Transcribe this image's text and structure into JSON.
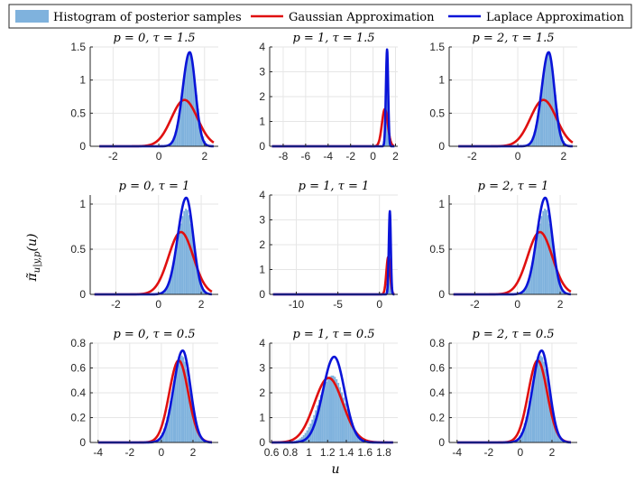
{
  "colors": {
    "hist": "#7fb2dd",
    "gauss": "#e01010",
    "laplace": "#0a14d8",
    "grid": "#e6e6e6",
    "axis": "#262626"
  },
  "legend": [
    {
      "label": "Histogram of posterior samples",
      "kind": "hist"
    },
    {
      "label": "Gaussian Approximation",
      "kind": "gauss"
    },
    {
      "label": "Laplace Approximation",
      "kind": "laplace"
    }
  ],
  "xlabel": "u",
  "ylabel": "π̃u|y,p(u)",
  "ylabel_parts": {
    "pi": "π̃",
    "sub": "u|y,p",
    "arg": "(u)"
  },
  "chart_data": [
    {
      "type": "line",
      "title": "p = 0, τ = 1.5",
      "xlim": [
        -3,
        2.6
      ],
      "ylim": [
        0,
        1.5
      ],
      "xticks": [
        -2,
        0,
        2
      ],
      "yticks": [
        0,
        0.5,
        1,
        1.5
      ],
      "ytick_labels": [
        "0",
        "0.5",
        "1",
        "1.5"
      ],
      "xtick_labels": [
        "-2",
        "0",
        "2"
      ],
      "gauss": {
        "mu": 1.12,
        "sigma": 0.57,
        "peak": 0.7
      },
      "laplace": {
        "mu": 1.35,
        "sigma": 0.28,
        "peak": 1.42,
        "skew": 0.1
      },
      "hist": {
        "mu": 1.35,
        "sigma": 0.3,
        "peak": 1.4,
        "skew": 0.08
      },
      "plot_x": [
        -2.6,
        2.4
      ]
    },
    {
      "type": "line",
      "title": "p = 1, τ = 1.5",
      "xlim": [
        -9.2,
        2.2
      ],
      "ylim": [
        0,
        4
      ],
      "xticks": [
        -8,
        -6,
        -4,
        -2,
        0,
        2
      ],
      "yticks": [
        0,
        1,
        2,
        3,
        4
      ],
      "ytick_labels": [
        "0",
        "1",
        "2",
        "3",
        "4"
      ],
      "xtick_labels": [
        "-8",
        "-6",
        "-4",
        "-2",
        "0",
        "2"
      ],
      "gauss": {
        "mu": 1.05,
        "sigma": 0.26,
        "peak": 1.5
      },
      "laplace": {
        "mu": 1.25,
        "sigma": 0.1,
        "peak": 3.9,
        "skew": 0.05
      },
      "hist": {
        "mu": 1.25,
        "sigma": 0.11,
        "peak": 3.5,
        "skew": 0.05
      },
      "plot_x": [
        -9.0,
        1.9
      ]
    },
    {
      "type": "line",
      "title": "p = 2, τ = 1.5",
      "xlim": [
        -3,
        2.6
      ],
      "ylim": [
        0,
        1.5
      ],
      "xticks": [
        -2,
        0,
        2
      ],
      "yticks": [
        0,
        0.5,
        1,
        1.5
      ],
      "ytick_labels": [
        "0",
        "0.5",
        "1",
        "1.5"
      ],
      "xtick_labels": [
        "-2",
        "0",
        "2"
      ],
      "gauss": {
        "mu": 1.12,
        "sigma": 0.57,
        "peak": 0.7
      },
      "laplace": {
        "mu": 1.35,
        "sigma": 0.28,
        "peak": 1.42,
        "skew": 0.1
      },
      "hist": {
        "mu": 1.35,
        "sigma": 0.3,
        "peak": 1.4,
        "skew": 0.08
      },
      "plot_x": [
        -2.6,
        2.4
      ]
    },
    {
      "type": "line",
      "title": "p = 0, τ = 1",
      "xlim": [
        -3.2,
        2.8
      ],
      "ylim": [
        0,
        1.1
      ],
      "xticks": [
        -2,
        0,
        2
      ],
      "yticks": [
        0,
        0.5,
        1
      ],
      "ytick_labels": [
        "0",
        "0.5",
        "1"
      ],
      "xtick_labels": [
        "-2",
        "0",
        "2"
      ],
      "gauss": {
        "mu": 1.05,
        "sigma": 0.58,
        "peak": 0.69
      },
      "laplace": {
        "mu": 1.3,
        "sigma": 0.36,
        "peak": 1.07,
        "skew": 0.1
      },
      "hist": {
        "mu": 1.3,
        "sigma": 0.38,
        "peak": 0.95,
        "skew": 0.08
      },
      "plot_x": [
        -3.0,
        2.5
      ]
    },
    {
      "type": "line",
      "title": "p = 1, τ = 1",
      "xlim": [
        -13.2,
        2.2
      ],
      "ylim": [
        0,
        4
      ],
      "xticks": [
        -10,
        -5,
        0
      ],
      "yticks": [
        0,
        1,
        2,
        3,
        4
      ],
      "ytick_labels": [
        "0",
        "1",
        "2",
        "3",
        "4"
      ],
      "xtick_labels": [
        "-10",
        "-5",
        "0"
      ],
      "gauss": {
        "mu": 1.05,
        "sigma": 0.22,
        "peak": 1.5
      },
      "laplace": {
        "mu": 1.25,
        "sigma": 0.12,
        "peak": 3.35,
        "skew": 0.05
      },
      "hist": {
        "mu": 1.25,
        "sigma": 0.13,
        "peak": 3.0,
        "skew": 0.05
      },
      "plot_x": [
        -12.8,
        1.8
      ]
    },
    {
      "type": "line",
      "title": "p = 2, τ = 1",
      "xlim": [
        -3.2,
        2.8
      ],
      "ylim": [
        0,
        1.1
      ],
      "xticks": [
        -2,
        0,
        2
      ],
      "yticks": [
        0,
        0.5,
        1
      ],
      "ytick_labels": [
        "0",
        "0.5",
        "1"
      ],
      "xtick_labels": [
        "-2",
        "0",
        "2"
      ],
      "gauss": {
        "mu": 1.05,
        "sigma": 0.58,
        "peak": 0.69
      },
      "laplace": {
        "mu": 1.3,
        "sigma": 0.36,
        "peak": 1.07,
        "skew": 0.1
      },
      "hist": {
        "mu": 1.3,
        "sigma": 0.38,
        "peak": 0.95,
        "skew": 0.08
      },
      "plot_x": [
        -3.0,
        2.5
      ]
    },
    {
      "type": "line",
      "title": "p = 0, τ = 0.5",
      "xlim": [
        -4.5,
        3.6
      ],
      "ylim": [
        0,
        0.8
      ],
      "xticks": [
        -4,
        -2,
        0,
        2
      ],
      "yticks": [
        0,
        0.2,
        0.4,
        0.6,
        0.8
      ],
      "ytick_labels": [
        "0",
        "0.2",
        "0.4",
        "0.6",
        "0.8"
      ],
      "xtick_labels": [
        "-4",
        "-2",
        "0",
        "2"
      ],
      "gauss": {
        "mu": 1.1,
        "sigma": 0.6,
        "peak": 0.66
      },
      "laplace": {
        "mu": 1.35,
        "sigma": 0.53,
        "peak": 0.74,
        "skew": 0.08
      },
      "hist": {
        "mu": 1.3,
        "sigma": 0.56,
        "peak": 0.7,
        "skew": 0.06
      },
      "plot_x": [
        -4.0,
        3.2
      ]
    },
    {
      "type": "line",
      "title": "p = 1, τ = 0.5",
      "xlim": [
        0.58,
        1.95
      ],
      "ylim": [
        0,
        4
      ],
      "xticks": [
        0.6,
        0.8,
        1,
        1.2,
        1.4,
        1.6,
        1.8
      ],
      "yticks": [
        0,
        1,
        2,
        3,
        4
      ],
      "ytick_labels": [
        "0",
        "1",
        "2",
        "3",
        "4"
      ],
      "xtick_labels": [
        "0.6",
        "0.8",
        "1",
        "1.2",
        "1.4",
        "1.6",
        "1.8"
      ],
      "gauss": {
        "mu": 1.21,
        "sigma": 0.153,
        "peak": 2.6
      },
      "laplace": {
        "mu": 1.27,
        "sigma": 0.115,
        "peak": 3.45,
        "skew": 0.04
      },
      "hist": {
        "mu": 1.25,
        "sigma": 0.14,
        "peak": 2.7,
        "skew": 0.04
      },
      "plot_x": [
        0.6,
        1.9
      ]
    },
    {
      "type": "line",
      "title": "p = 2, τ = 0.5",
      "xlim": [
        -4.5,
        3.6
      ],
      "ylim": [
        0,
        0.8
      ],
      "xticks": [
        -4,
        -2,
        0,
        2
      ],
      "yticks": [
        0,
        0.2,
        0.4,
        0.6,
        0.8
      ],
      "ytick_labels": [
        "0",
        "0.2",
        "0.4",
        "0.6",
        "0.8"
      ],
      "xtick_labels": [
        "-4",
        "-2",
        "0",
        "2"
      ],
      "gauss": {
        "mu": 1.1,
        "sigma": 0.6,
        "peak": 0.66
      },
      "laplace": {
        "mu": 1.35,
        "sigma": 0.53,
        "peak": 0.74,
        "skew": 0.08
      },
      "hist": {
        "mu": 1.3,
        "sigma": 0.56,
        "peak": 0.7,
        "skew": 0.06
      },
      "plot_x": [
        -4.0,
        3.2
      ]
    }
  ]
}
